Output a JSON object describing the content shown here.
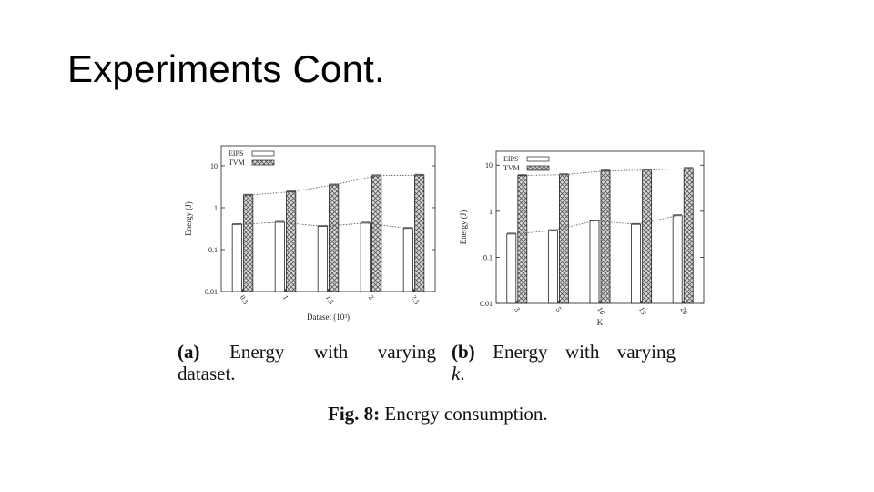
{
  "slide": {
    "title": "Experiments Cont."
  },
  "figure": {
    "label": "Fig. 8:",
    "caption": "Energy consumption."
  },
  "subcaptions": {
    "a": {
      "label": "(a)",
      "line1": "Energy with varying",
      "line2": "dataset."
    },
    "b": {
      "label": "(b)",
      "line1": "Energy with varying",
      "line2": "k",
      "line2_suffix": "."
    }
  },
  "colors": {
    "eips_fill": "#ffffff",
    "tvm_fill": "#d9d9d9",
    "axis": "#222222",
    "trend_line": "#555555"
  },
  "chart_data": [
    {
      "type": "bar",
      "id": "a",
      "categories": [
        "0.5",
        "1",
        "1.5",
        "2",
        "2.5"
      ],
      "series": [
        {
          "name": "EIPS",
          "values": [
            0.4,
            0.45,
            0.36,
            0.43,
            0.32
          ]
        },
        {
          "name": "TVM",
          "values": [
            2.0,
            2.4,
            3.5,
            5.8,
            6.0
          ]
        }
      ],
      "xlabel": "Dataset (10³)",
      "ylabel": "Energy (J)",
      "yscale": "log",
      "ylim": [
        0.01,
        30
      ],
      "yticks": [
        "0.01",
        "0.1",
        "1",
        "10"
      ],
      "legend": "top-left",
      "trend_lines": true
    },
    {
      "type": "bar",
      "id": "b",
      "categories": [
        "3",
        "5",
        "10",
        "15",
        "20"
      ],
      "series": [
        {
          "name": "EIPS",
          "values": [
            0.32,
            0.38,
            0.62,
            0.52,
            0.8
          ]
        },
        {
          "name": "TVM",
          "values": [
            6.0,
            6.2,
            7.5,
            7.8,
            8.5
          ]
        }
      ],
      "xlabel": "K",
      "ylabel": "Energy (J)",
      "yscale": "log",
      "ylim": [
        0.01,
        20
      ],
      "yticks": [
        "0.01",
        "0.1",
        "1",
        "10"
      ],
      "legend": "top-left",
      "trend_lines": true
    }
  ]
}
